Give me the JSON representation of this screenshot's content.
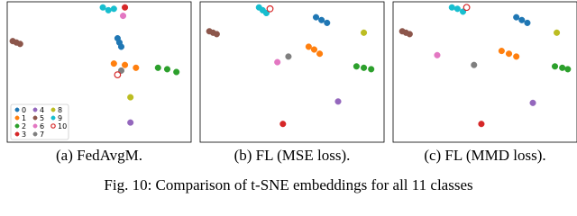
{
  "chart_data": [
    {
      "type": "scatter",
      "caption": "(a) FedAvgM.",
      "xlim": [
        0,
        100
      ],
      "ylim": [
        0,
        100
      ],
      "legend": "lower left",
      "series": [
        {
          "name": "0",
          "color": "#1f77b4",
          "marker": "circle",
          "x": [
            60,
            61,
            62
          ],
          "y": [
            74,
            71,
            68
          ]
        },
        {
          "name": "1",
          "color": "#ff7f0e",
          "marker": "circle",
          "x": [
            58,
            64,
            70
          ],
          "y": [
            56,
            55,
            53
          ]
        },
        {
          "name": "2",
          "color": "#2ca02c",
          "marker": "circle",
          "x": [
            82,
            87,
            92
          ],
          "y": [
            53,
            52,
            50
          ]
        },
        {
          "name": "3",
          "color": "#d62728",
          "marker": "circle",
          "x": [
            64
          ],
          "y": [
            96
          ]
        },
        {
          "name": "4",
          "color": "#9467bd",
          "marker": "circle",
          "x": [
            67
          ],
          "y": [
            14
          ]
        },
        {
          "name": "5",
          "color": "#8c564b",
          "marker": "circle",
          "x": [
            3,
            5,
            7
          ],
          "y": [
            72,
            71,
            70
          ]
        },
        {
          "name": "6",
          "color": "#e377c2",
          "marker": "circle",
          "x": [
            63
          ],
          "y": [
            90
          ]
        },
        {
          "name": "7",
          "color": "#7f7f7f",
          "marker": "circle",
          "x": [
            62
          ],
          "y": [
            51
          ]
        },
        {
          "name": "8",
          "color": "#bcbd22",
          "marker": "circle",
          "x": [
            67
          ],
          "y": [
            32
          ]
        },
        {
          "name": "9",
          "color": "#17becf",
          "marker": "circle",
          "x": [
            52,
            55,
            58
          ],
          "y": [
            96,
            94,
            95
          ]
        },
        {
          "name": "10",
          "color": "#d62728",
          "marker": "open-circle",
          "x": [
            60
          ],
          "y": [
            48
          ]
        }
      ]
    },
    {
      "type": "scatter",
      "caption": "(b) FL (MSE loss).",
      "xlim": [
        0,
        100
      ],
      "ylim": [
        0,
        100
      ],
      "series": [
        {
          "name": "0",
          "color": "#1f77b4",
          "marker": "circle",
          "x": [
            63,
            66,
            69
          ],
          "y": [
            89,
            87,
            85
          ]
        },
        {
          "name": "1",
          "color": "#ff7f0e",
          "marker": "circle",
          "x": [
            59,
            62,
            65
          ],
          "y": [
            68,
            66,
            63
          ]
        },
        {
          "name": "2",
          "color": "#2ca02c",
          "marker": "circle",
          "x": [
            85,
            89,
            93
          ],
          "y": [
            54,
            53,
            52
          ]
        },
        {
          "name": "3",
          "color": "#d62728",
          "marker": "circle",
          "x": [
            45
          ],
          "y": [
            13
          ]
        },
        {
          "name": "4",
          "color": "#9467bd",
          "marker": "circle",
          "x": [
            75
          ],
          "y": [
            29
          ]
        },
        {
          "name": "5",
          "color": "#8c564b",
          "marker": "circle",
          "x": [
            5,
            7,
            9
          ],
          "y": [
            79,
            78,
            77
          ]
        },
        {
          "name": "6",
          "color": "#e377c2",
          "marker": "circle",
          "x": [
            42
          ],
          "y": [
            57
          ]
        },
        {
          "name": "7",
          "color": "#7f7f7f",
          "marker": "circle",
          "x": [
            48
          ],
          "y": [
            61
          ]
        },
        {
          "name": "8",
          "color": "#bcbd22",
          "marker": "circle",
          "x": [
            89
          ],
          "y": [
            78
          ]
        },
        {
          "name": "9",
          "color": "#17becf",
          "marker": "circle",
          "x": [
            32,
            34,
            36
          ],
          "y": [
            96,
            94,
            92
          ]
        },
        {
          "name": "10",
          "color": "#d62728",
          "marker": "open-circle",
          "x": [
            38
          ],
          "y": [
            95
          ]
        }
      ]
    },
    {
      "type": "scatter",
      "caption": "(c) FL (MMD loss).",
      "xlim": [
        0,
        100
      ],
      "ylim": [
        0,
        100
      ],
      "series": [
        {
          "name": "0",
          "color": "#1f77b4",
          "marker": "circle",
          "x": [
            67,
            70,
            73
          ],
          "y": [
            89,
            87,
            85
          ]
        },
        {
          "name": "1",
          "color": "#ff7f0e",
          "marker": "circle",
          "x": [
            59,
            63,
            67
          ],
          "y": [
            65,
            63,
            61
          ]
        },
        {
          "name": "2",
          "color": "#2ca02c",
          "marker": "circle",
          "x": [
            88,
            92,
            95
          ],
          "y": [
            54,
            53,
            52
          ]
        },
        {
          "name": "3",
          "color": "#d62728",
          "marker": "circle",
          "x": [
            48
          ],
          "y": [
            13
          ]
        },
        {
          "name": "4",
          "color": "#9467bd",
          "marker": "circle",
          "x": [
            76
          ],
          "y": [
            28
          ]
        },
        {
          "name": "5",
          "color": "#8c564b",
          "marker": "circle",
          "x": [
            5,
            7,
            9
          ],
          "y": [
            79,
            78,
            77
          ]
        },
        {
          "name": "6",
          "color": "#e377c2",
          "marker": "circle",
          "x": [
            24
          ],
          "y": [
            62
          ]
        },
        {
          "name": "7",
          "color": "#7f7f7f",
          "marker": "circle",
          "x": [
            44
          ],
          "y": [
            55
          ]
        },
        {
          "name": "8",
          "color": "#bcbd22",
          "marker": "circle",
          "x": [
            89
          ],
          "y": [
            78
          ]
        },
        {
          "name": "9",
          "color": "#17becf",
          "marker": "circle",
          "x": [
            32,
            35,
            38
          ],
          "y": [
            96,
            95,
            93
          ]
        },
        {
          "name": "10",
          "color": "#d62728",
          "marker": "open-circle",
          "x": [
            40
          ],
          "y": [
            96
          ]
        }
      ]
    }
  ],
  "figure_caption": "Fig. 10: Comparison of t-SNE embeddings for all 11 classes"
}
